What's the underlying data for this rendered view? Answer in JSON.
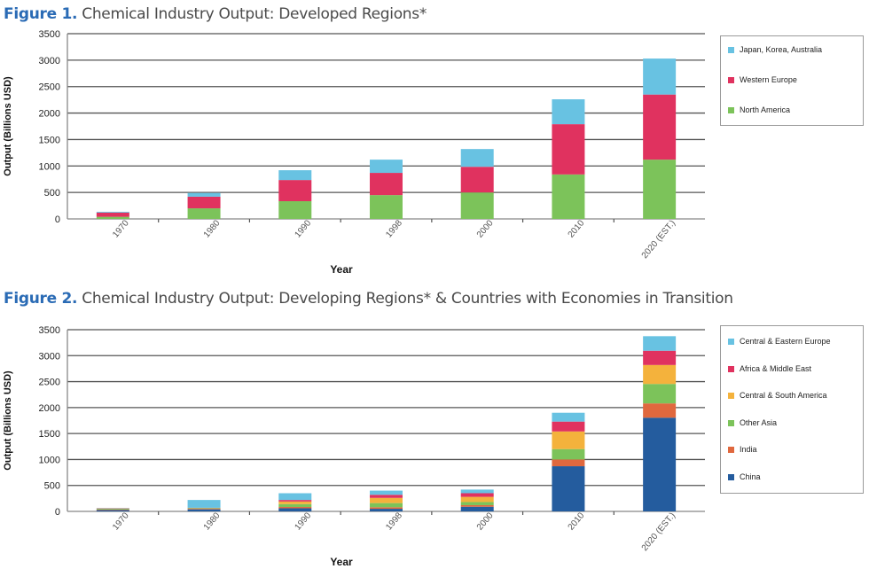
{
  "figures": [
    {
      "label": "Figure 1.",
      "title": "Chemical Industry Output: Developed Regions*"
    },
    {
      "label": "Figure 2.",
      "title": "Chemical Industry Output: Developing Regions* & Countries with Economies in Transition"
    }
  ],
  "chart_data": [
    {
      "type": "bar",
      "stacked": true,
      "title": "Figure 1. Chemical Industry Output: Developed Regions*",
      "xlabel": "Year",
      "ylabel": "Output (Billions USD)",
      "ylim": [
        0,
        3500
      ],
      "yticks": [
        0,
        500,
        1000,
        1500,
        2000,
        2500,
        3000,
        3500
      ],
      "grid": true,
      "legend_position": "right",
      "categories": [
        "1970",
        "1980",
        "1990",
        "1998",
        "2000",
        "2010",
        "2020 (EST.)"
      ],
      "series": [
        {
          "name": "North America",
          "color": "#7cc35a",
          "values": [
            40,
            200,
            335,
            450,
            500,
            840,
            1120
          ]
        },
        {
          "name": "Western Europe",
          "color": "#e0325f",
          "values": [
            80,
            220,
            400,
            420,
            485,
            950,
            1230
          ]
        },
        {
          "name": "Japan, Korea, Australia",
          "color": "#68c2e2",
          "values": [
            15,
            70,
            185,
            250,
            335,
            470,
            680
          ]
        }
      ],
      "legend_order": [
        "Japan, Korea, Australia",
        "Western Europe",
        "North America"
      ]
    },
    {
      "type": "bar",
      "stacked": true,
      "title": "Figure 2. Chemical Industry Output: Developing Regions* & Countries with Economies in Transition",
      "xlabel": "Year",
      "ylabel": "Output (Billions USD)",
      "ylim": [
        0,
        3500
      ],
      "yticks": [
        0,
        500,
        1000,
        1500,
        2000,
        2500,
        3000,
        3500
      ],
      "grid": true,
      "legend_position": "right",
      "categories": [
        "1970",
        "1980",
        "1990",
        "1998",
        "2000",
        "2010",
        "2020 (EST.)"
      ],
      "series": [
        {
          "name": "China",
          "color": "#245c9e",
          "values": [
            25,
            40,
            60,
            50,
            90,
            870,
            1805
          ]
        },
        {
          "name": "India",
          "color": "#e0683e",
          "values": [
            10,
            10,
            25,
            30,
            30,
            130,
            275
          ]
        },
        {
          "name": "Other Asia",
          "color": "#7cc35a",
          "values": [
            15,
            10,
            55,
            80,
            60,
            200,
            375
          ]
        },
        {
          "name": "Central & South America",
          "color": "#f4b23c",
          "values": [
            5,
            5,
            50,
            100,
            100,
            340,
            365
          ]
        },
        {
          "name": "Africa & Middle East",
          "color": "#e0325f",
          "values": [
            5,
            5,
            30,
            60,
            70,
            190,
            275
          ]
        },
        {
          "name": "Central & Eastern Europe",
          "color": "#68c2e2",
          "values": [
            5,
            150,
            130,
            80,
            70,
            170,
            280
          ]
        }
      ],
      "legend_order": [
        "Central & Eastern Europe",
        "Africa & Middle East",
        "Central & South America",
        "Other Asia",
        "India",
        "China"
      ]
    }
  ]
}
